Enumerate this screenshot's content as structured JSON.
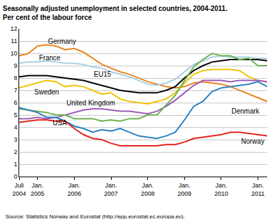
{
  "chart_data": {
    "type": "line",
    "title": "Seasonally adjusted unemployment in selected countries, 2004-2011.",
    "subtitle": "Per cent of the labour force",
    "source": "Source: Statistics Norway and Eurostat (http://epp.eurostat.ec.europa.eu).",
    "categories": [
      "Juli 2004",
      null,
      "Jan. 2005",
      null,
      null,
      null,
      "Jan. 2006",
      null,
      null,
      null,
      "Jan. 2007",
      null,
      null,
      null,
      "Jan. 2008",
      null,
      null,
      null,
      "Jan. 2009",
      null,
      null,
      null,
      "Jan. 2010",
      null,
      null,
      null,
      "Jan. 2011",
      null
    ],
    "ylim": [
      0,
      12
    ],
    "yticks": [
      0,
      1,
      2,
      3,
      4,
      5,
      6,
      7,
      8,
      9,
      10,
      11,
      12
    ],
    "grid": true,
    "series": [
      {
        "name": "Germany",
        "color": "#e8841c",
        "values": [
          9.8,
          10.0,
          10.6,
          10.7,
          10.6,
          10.3,
          10.4,
          10.1,
          9.6,
          9.1,
          8.8,
          8.5,
          8.3,
          8.0,
          7.7,
          7.5,
          7.3,
          7.2,
          7.3,
          7.6,
          7.7,
          7.6,
          7.5,
          7.3,
          7.0,
          6.7,
          6.4,
          6.1
        ]
      },
      {
        "name": "France",
        "color": "#a8cfe6",
        "values": [
          9.2,
          9.3,
          9.3,
          9.4,
          9.3,
          9.2,
          9.2,
          9.1,
          8.9,
          8.8,
          8.5,
          8.3,
          8.1,
          7.8,
          7.5,
          7.4,
          7.6,
          7.9,
          8.5,
          9.1,
          9.4,
          9.7,
          9.8,
          9.7,
          9.7,
          9.7,
          9.6,
          9.6
        ]
      },
      {
        "name": "EU15",
        "color": "#000000",
        "values": [
          8.1,
          8.2,
          8.2,
          8.2,
          8.1,
          8.0,
          7.9,
          7.8,
          7.6,
          7.4,
          7.2,
          7.0,
          6.9,
          6.8,
          6.8,
          6.8,
          7.0,
          7.3,
          8.0,
          8.6,
          9.0,
          9.3,
          9.4,
          9.5,
          9.5,
          9.5,
          9.5,
          9.4
        ]
      },
      {
        "name": "Sweden",
        "color": "#f2c200",
        "values": [
          7.2,
          7.4,
          7.6,
          7.8,
          7.7,
          7.3,
          7.4,
          7.3,
          7.0,
          6.7,
          6.8,
          6.3,
          6.1,
          6.0,
          5.9,
          6.1,
          6.3,
          6.8,
          7.6,
          8.3,
          8.6,
          8.7,
          8.7,
          8.7,
          8.6,
          8.1,
          7.8,
          7.7
        ]
      },
      {
        "name": "United Kingdom",
        "color": "#9b59b6",
        "values": [
          4.7,
          4.7,
          4.8,
          4.7,
          4.8,
          5.0,
          5.2,
          5.4,
          5.5,
          5.5,
          5.4,
          5.3,
          5.3,
          5.2,
          5.1,
          5.3,
          5.7,
          6.2,
          6.8,
          7.4,
          7.8,
          7.8,
          7.8,
          7.7,
          7.8,
          7.8,
          7.8,
          7.7
        ]
      },
      {
        "name": "USA",
        "color": "#6ab04c",
        "values": [
          5.5,
          5.4,
          5.3,
          5.2,
          5.0,
          5.0,
          4.7,
          4.7,
          4.7,
          4.5,
          4.6,
          4.5,
          4.7,
          4.7,
          5.0,
          5.0,
          5.8,
          6.6,
          7.8,
          8.9,
          9.5,
          10.0,
          9.8,
          9.8,
          9.5,
          9.6,
          9.0,
          9.0
        ]
      },
      {
        "name": "Denmark",
        "color": "#2a7fc1",
        "values": [
          5.6,
          5.4,
          5.2,
          4.8,
          4.8,
          4.5,
          4.1,
          3.9,
          3.6,
          3.8,
          3.7,
          3.9,
          3.6,
          3.3,
          3.2,
          3.1,
          3.3,
          3.6,
          4.6,
          5.7,
          6.1,
          6.9,
          7.2,
          7.3,
          7.4,
          7.5,
          7.7,
          7.3
        ]
      },
      {
        "name": "Norway",
        "color": "#e0231b",
        "values": [
          4.4,
          4.5,
          4.6,
          4.6,
          4.5,
          4.5,
          3.9,
          3.4,
          3.1,
          3.0,
          2.7,
          2.5,
          2.5,
          2.5,
          2.5,
          2.5,
          2.6,
          2.6,
          2.8,
          3.1,
          3.2,
          3.3,
          3.4,
          3.6,
          3.6,
          3.5,
          3.4,
          3.3
        ]
      }
    ],
    "annotations": [
      {
        "text": "Germany",
        "x": 3,
        "y": 10.95
      },
      {
        "text": "France",
        "x": 2,
        "y": 9.65
      },
      {
        "text": "EU15",
        "x": 8,
        "y": 8.3
      },
      {
        "text": "Sweden",
        "x": 1.5,
        "y": 6.85
      },
      {
        "text": "United Kingdom",
        "x": 5,
        "y": 5.95
      },
      {
        "text": "USA",
        "x": 3.5,
        "y": 4.35
      },
      {
        "text": "Denmark",
        "x": 23,
        "y": 5.3
      },
      {
        "text": "Norway",
        "x": 24,
        "y": 2.85
      }
    ]
  }
}
